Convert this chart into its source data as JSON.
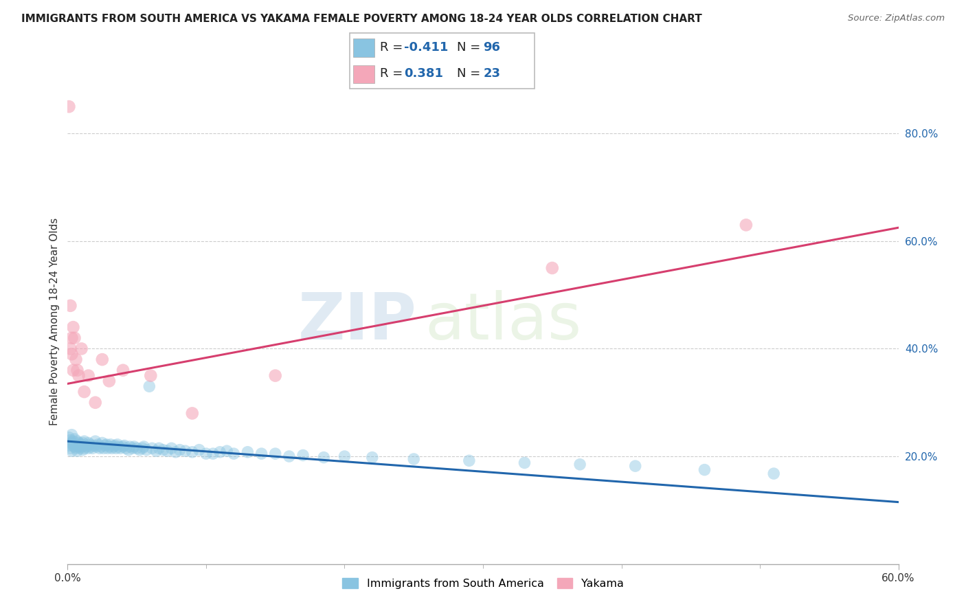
{
  "title": "IMMIGRANTS FROM SOUTH AMERICA VS YAKAMA FEMALE POVERTY AMONG 18-24 YEAR OLDS CORRELATION CHART",
  "source": "Source: ZipAtlas.com",
  "ylabel": "Female Poverty Among 18-24 Year Olds",
  "xlabel_blue": "Immigrants from South America",
  "xlabel_pink": "Yakama",
  "legend_blue_r": "-0.411",
  "legend_blue_n": "96",
  "legend_pink_r": "0.381",
  "legend_pink_n": "23",
  "xlim": [
    0.0,
    0.6
  ],
  "ylim": [
    0.0,
    0.9
  ],
  "yticks": [
    0.2,
    0.4,
    0.6,
    0.8
  ],
  "ytick_labels": [
    "20.0%",
    "40.0%",
    "60.0%",
    "80.0%"
  ],
  "xtick_labels_shown": [
    "0.0%",
    "60.0%"
  ],
  "xtick_positions_shown": [
    0.0,
    0.6
  ],
  "xtick_minor": [
    0.1,
    0.2,
    0.3,
    0.4,
    0.5
  ],
  "blue_color": "#89c4e1",
  "pink_color": "#f4a7b9",
  "blue_line_color": "#2166ac",
  "pink_line_color": "#d63e6e",
  "watermark_zip": "ZIP",
  "watermark_atlas": "atlas",
  "blue_scatter_x": [
    0.001,
    0.001,
    0.002,
    0.002,
    0.003,
    0.003,
    0.003,
    0.004,
    0.004,
    0.005,
    0.005,
    0.006,
    0.006,
    0.007,
    0.007,
    0.008,
    0.008,
    0.009,
    0.009,
    0.01,
    0.01,
    0.011,
    0.011,
    0.012,
    0.012,
    0.013,
    0.014,
    0.015,
    0.015,
    0.016,
    0.017,
    0.018,
    0.019,
    0.02,
    0.021,
    0.022,
    0.023,
    0.024,
    0.025,
    0.026,
    0.027,
    0.028,
    0.029,
    0.03,
    0.031,
    0.032,
    0.033,
    0.034,
    0.035,
    0.036,
    0.037,
    0.038,
    0.04,
    0.041,
    0.042,
    0.044,
    0.045,
    0.047,
    0.048,
    0.05,
    0.052,
    0.054,
    0.055,
    0.057,
    0.059,
    0.061,
    0.064,
    0.066,
    0.069,
    0.072,
    0.075,
    0.078,
    0.081,
    0.085,
    0.09,
    0.095,
    0.1,
    0.105,
    0.11,
    0.115,
    0.12,
    0.13,
    0.14,
    0.15,
    0.16,
    0.17,
    0.185,
    0.2,
    0.22,
    0.25,
    0.29,
    0.33,
    0.37,
    0.41,
    0.46,
    0.51
  ],
  "blue_scatter_y": [
    0.235,
    0.22,
    0.215,
    0.23,
    0.225,
    0.21,
    0.24,
    0.22,
    0.228,
    0.218,
    0.232,
    0.222,
    0.215,
    0.228,
    0.21,
    0.225,
    0.218,
    0.22,
    0.215,
    0.222,
    0.218,
    0.225,
    0.212,
    0.228,
    0.215,
    0.22,
    0.218,
    0.225,
    0.215,
    0.222,
    0.218,
    0.215,
    0.22,
    0.228,
    0.218,
    0.222,
    0.215,
    0.218,
    0.225,
    0.215,
    0.22,
    0.222,
    0.215,
    0.218,
    0.222,
    0.215,
    0.218,
    0.22,
    0.215,
    0.222,
    0.218,
    0.215,
    0.218,
    0.22,
    0.215,
    0.212,
    0.218,
    0.215,
    0.218,
    0.215,
    0.212,
    0.215,
    0.218,
    0.212,
    0.33,
    0.215,
    0.21,
    0.215,
    0.212,
    0.21,
    0.215,
    0.208,
    0.212,
    0.21,
    0.208,
    0.212,
    0.205,
    0.205,
    0.208,
    0.21,
    0.205,
    0.208,
    0.205,
    0.205,
    0.2,
    0.202,
    0.198,
    0.2,
    0.198,
    0.195,
    0.192,
    0.188,
    0.185,
    0.182,
    0.175,
    0.168
  ],
  "pink_scatter_x": [
    0.001,
    0.002,
    0.002,
    0.003,
    0.003,
    0.004,
    0.004,
    0.005,
    0.006,
    0.007,
    0.008,
    0.01,
    0.012,
    0.015,
    0.02,
    0.025,
    0.03,
    0.04,
    0.06,
    0.09,
    0.15,
    0.35,
    0.49
  ],
  "pink_scatter_y": [
    0.85,
    0.48,
    0.4,
    0.42,
    0.39,
    0.44,
    0.36,
    0.42,
    0.38,
    0.36,
    0.35,
    0.4,
    0.32,
    0.35,
    0.3,
    0.38,
    0.34,
    0.36,
    0.35,
    0.28,
    0.35,
    0.55,
    0.63
  ],
  "pink_trend_x": [
    0.0,
    0.6
  ],
  "pink_trend_y": [
    0.335,
    0.625
  ],
  "blue_trend_x": [
    0.0,
    0.6
  ],
  "blue_trend_y": [
    0.228,
    0.115
  ]
}
